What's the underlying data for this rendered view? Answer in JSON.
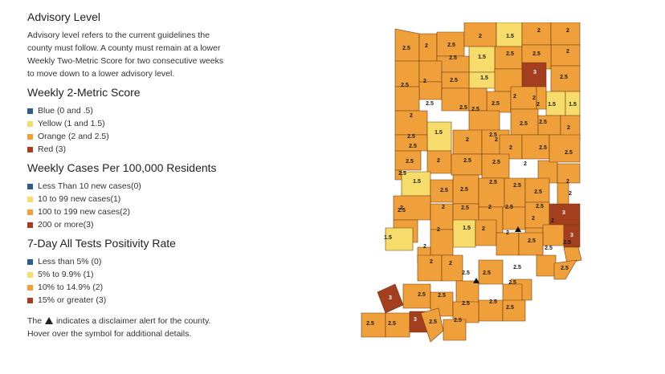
{
  "advisory": {
    "title": "Advisory Level",
    "description": "Advisory level refers to the current guidelines the county must follow. A county must remain at a lower Weekly Two-Metric Score for two consecutive weeks to move down to a lower advisory level."
  },
  "colors": {
    "blue": "#2e5b8a",
    "yellow": "#f6dc6a",
    "orange": "#f0a03a",
    "red": "#a33e1e",
    "border": "#6b3a10"
  },
  "legends": [
    {
      "title": "Weekly 2-Metric Score",
      "items": [
        {
          "label": "Blue (0 and .5)",
          "color": "#2e5b8a"
        },
        {
          "label": "Yellow (1 and 1.5)",
          "color": "#f6dc6a"
        },
        {
          "label": "Orange (2 and 2.5)",
          "color": "#f0a03a"
        },
        {
          "label": "Red (3)",
          "color": "#a33e1e"
        }
      ]
    },
    {
      "title": "Weekly Cases Per 100,000 Residents",
      "items": [
        {
          "label": "Less Than 10 new cases(0)",
          "color": "#2e5b8a"
        },
        {
          "label": "10 to 99 new cases(1)",
          "color": "#f6dc6a"
        },
        {
          "label": "100 to 199 new cases(2)",
          "color": "#f0a03a"
        },
        {
          "label": "200 or more(3)",
          "color": "#a33e1e"
        }
      ]
    },
    {
      "title": "7-Day All Tests Positivity Rate",
      "items": [
        {
          "label": "Less than 5% (0)",
          "color": "#2e5b8a"
        },
        {
          "label": "5% to 9.9% (1)",
          "color": "#f6dc6a"
        },
        {
          "label": "10% to 14.9% (2)",
          "color": "#f0a03a"
        },
        {
          "label": "15% or greater (3)",
          "color": "#a33e1e"
        }
      ]
    }
  ],
  "disclaimer": {
    "before": "The",
    "after": "indicates a disclaimer alert for the county. Hover over the symbol for additional details."
  },
  "counties": [
    {
      "score": "2.5",
      "level": "orange"
    },
    {
      "score": "2",
      "level": "orange"
    },
    {
      "score": "2.5",
      "level": "orange"
    },
    {
      "score": "2",
      "level": "orange"
    },
    {
      "score": "1.5",
      "level": "yellow"
    },
    {
      "score": "2",
      "level": "orange"
    },
    {
      "score": "2",
      "level": "orange"
    },
    {
      "score": "2.5",
      "level": "orange"
    },
    {
      "score": "1.5",
      "level": "yellow"
    },
    {
      "score": "2.5",
      "level": "orange"
    },
    {
      "score": "2",
      "level": "orange"
    },
    {
      "score": "2.5",
      "level": "orange"
    },
    {
      "score": "2.5",
      "level": "orange"
    },
    {
      "score": "2",
      "level": "orange"
    },
    {
      "score": "1.5",
      "level": "yellow"
    },
    {
      "score": "3",
      "level": "red"
    },
    {
      "score": "2.5",
      "level": "orange"
    },
    {
      "score": "2.5",
      "level": "orange"
    },
    {
      "score": "2.5",
      "level": "orange"
    },
    {
      "score": "2.5",
      "level": "orange"
    },
    {
      "score": "2",
      "level": "orange"
    },
    {
      "score": "2.5",
      "level": "orange"
    },
    {
      "score": "2",
      "level": "orange"
    },
    {
      "score": "1.5",
      "level": "yellow"
    },
    {
      "score": "1.5",
      "level": "yellow"
    },
    {
      "score": "2",
      "level": "orange"
    },
    {
      "score": "2",
      "level": "orange"
    },
    {
      "score": "2.5",
      "level": "orange"
    },
    {
      "score": "2.5",
      "level": "orange"
    },
    {
      "score": "2.5",
      "level": "orange"
    },
    {
      "score": "2.5",
      "level": "orange"
    },
    {
      "score": "1.5",
      "level": "yellow"
    },
    {
      "score": "2",
      "level": "orange"
    },
    {
      "score": "2",
      "level": "orange"
    },
    {
      "score": "2.5",
      "level": "orange"
    },
    {
      "score": "2",
      "level": "orange"
    },
    {
      "score": "2",
      "level": "orange"
    },
    {
      "score": "2.5",
      "level": "orange"
    },
    {
      "score": "2",
      "level": "orange"
    },
    {
      "score": "2.5",
      "level": "orange"
    },
    {
      "score": "2.5",
      "level": "orange"
    },
    {
      "score": "2",
      "level": "orange"
    },
    {
      "score": "2.5",
      "level": "orange"
    },
    {
      "score": "2.5",
      "level": "orange"
    },
    {
      "score": "2.5",
      "level": "orange"
    },
    {
      "score": "2",
      "level": "orange"
    },
    {
      "score": "2.5",
      "level": "orange"
    },
    {
      "score": "1.5",
      "level": "yellow"
    },
    {
      "score": "2.5",
      "level": "orange"
    },
    {
      "score": "2.5",
      "level": "orange"
    },
    {
      "score": "2",
      "level": "orange"
    },
    {
      "score": "2.5",
      "level": "orange"
    },
    {
      "score": "2.5",
      "level": "orange"
    },
    {
      "score": "2.5",
      "level": "orange"
    },
    {
      "score": "2.5",
      "level": "orange"
    },
    {
      "score": "2",
      "level": "orange"
    },
    {
      "score": "2.5",
      "level": "orange"
    },
    {
      "score": "2",
      "level": "orange"
    },
    {
      "score": "2.5",
      "level": "orange"
    },
    {
      "score": "2.5",
      "level": "orange"
    },
    {
      "score": "2",
      "level": "orange"
    },
    {
      "score": "3",
      "level": "red"
    },
    {
      "score": "1.5",
      "level": "yellow"
    },
    {
      "score": "2",
      "level": "orange"
    },
    {
      "score": "1.5",
      "level": "yellow"
    },
    {
      "score": "2",
      "level": "orange"
    },
    {
      "score": "2",
      "level": "orange"
    },
    {
      "score": "2",
      "level": "orange"
    },
    {
      "score": "2",
      "level": "orange"
    },
    {
      "score": "2.5",
      "level": "orange"
    },
    {
      "score": "2",
      "level": "orange"
    },
    {
      "score": "3",
      "level": "red"
    },
    {
      "score": "2.5",
      "level": "orange"
    },
    {
      "score": "2.5",
      "level": "orange"
    },
    {
      "score": "2",
      "level": "orange"
    },
    {
      "score": "2",
      "level": "orange"
    },
    {
      "score": "2.5",
      "level": "orange"
    },
    {
      "score": "2.5",
      "level": "orange"
    },
    {
      "score": "2.5",
      "level": "orange"
    },
    {
      "score": "2.5",
      "level": "orange"
    },
    {
      "score": "2.5",
      "level": "orange"
    },
    {
      "score": "3",
      "level": "red"
    },
    {
      "score": "2.5",
      "level": "orange"
    },
    {
      "score": "2.5",
      "level": "orange"
    },
    {
      "score": "2.5",
      "level": "orange"
    },
    {
      "score": "2.5",
      "level": "orange"
    },
    {
      "score": "2.5",
      "level": "orange"
    },
    {
      "score": "2.5",
      "level": "orange"
    },
    {
      "score": "2.5",
      "level": "orange"
    },
    {
      "score": "3",
      "level": "red"
    },
    {
      "score": "2.5",
      "level": "orange"
    },
    {
      "score": "2.5",
      "level": "orange"
    }
  ]
}
